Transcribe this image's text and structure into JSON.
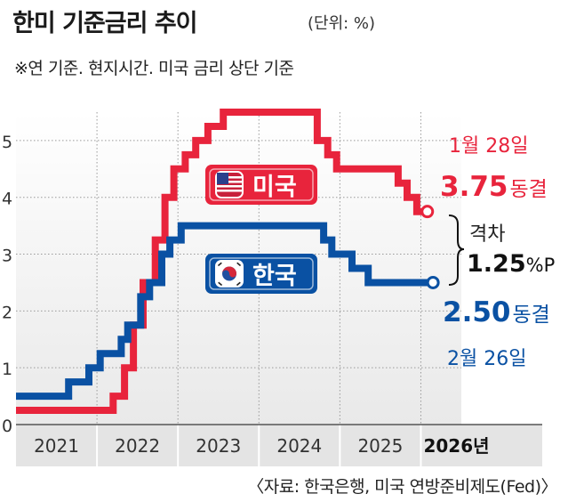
{
  "header": {
    "title": "한미 기준금리 추이",
    "unit": "(단위: %)",
    "subtitle": "※연 기준. 현지시간. 미국 금리 상단 기준",
    "source": "〈자료: 한국은행, 미국 연방준비제도(Fed)〉"
  },
  "chart_data": {
    "type": "line",
    "step": true,
    "ylim": [
      0,
      5.5
    ],
    "yticks": [
      0,
      1,
      2,
      3,
      4,
      5
    ],
    "ytick_labels": [
      "0",
      "1",
      "2",
      "3",
      "4",
      "5"
    ],
    "xlim": [
      2021.0,
      2026.5
    ],
    "x_categories": [
      "2021",
      "2022",
      "2023",
      "2024",
      "2025",
      "2026년"
    ],
    "grid": true,
    "series": [
      {
        "name": "미국",
        "color": "#e8243c",
        "points": [
          [
            2021.0,
            0.25
          ],
          [
            2022.2,
            0.5
          ],
          [
            2022.34,
            1.0
          ],
          [
            2022.45,
            1.75
          ],
          [
            2022.57,
            2.5
          ],
          [
            2022.72,
            3.25
          ],
          [
            2022.84,
            4.0
          ],
          [
            2022.95,
            4.5
          ],
          [
            2023.09,
            4.75
          ],
          [
            2023.22,
            5.0
          ],
          [
            2023.37,
            5.25
          ],
          [
            2023.56,
            5.5
          ],
          [
            2024.72,
            5.0
          ],
          [
            2024.85,
            4.75
          ],
          [
            2024.96,
            4.5
          ],
          [
            2025.72,
            4.25
          ],
          [
            2025.83,
            4.0
          ],
          [
            2025.95,
            3.75
          ],
          [
            2026.08,
            3.75
          ]
        ],
        "end_date": "1월 28일",
        "end_value": "3.75",
        "end_status": "동결"
      },
      {
        "name": "한국",
        "color": "#0a51a3",
        "points": [
          [
            2021.0,
            0.5
          ],
          [
            2021.65,
            0.75
          ],
          [
            2021.9,
            1.0
          ],
          [
            2022.04,
            1.25
          ],
          [
            2022.3,
            1.5
          ],
          [
            2022.38,
            1.75
          ],
          [
            2022.54,
            2.25
          ],
          [
            2022.65,
            2.5
          ],
          [
            2022.8,
            3.0
          ],
          [
            2022.9,
            3.25
          ],
          [
            2023.04,
            3.5
          ],
          [
            2024.8,
            3.25
          ],
          [
            2024.9,
            3.0
          ],
          [
            2025.15,
            2.75
          ],
          [
            2025.35,
            2.5
          ],
          [
            2026.15,
            2.5
          ]
        ],
        "end_date": "2월 26일",
        "end_value": "2.50",
        "end_status": "동결"
      }
    ],
    "gap": {
      "label": "격차",
      "value": "1.25",
      "unit": "%P"
    }
  }
}
